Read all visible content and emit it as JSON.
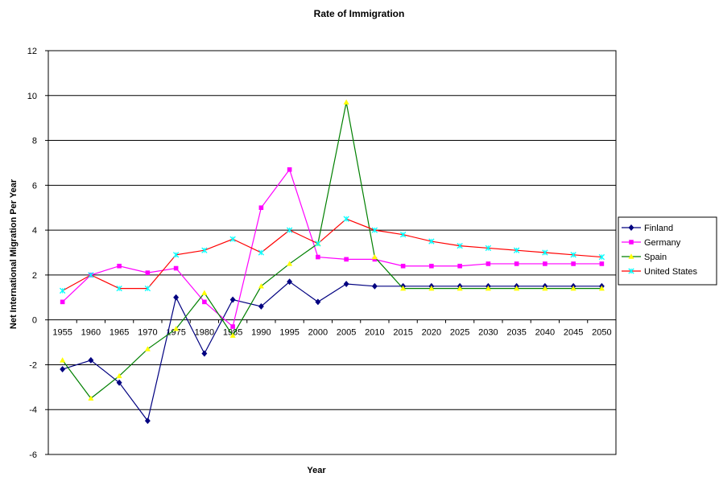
{
  "chart_data": {
    "type": "line",
    "title": "Rate of Immigration",
    "xlabel": "Year",
    "ylabel": "Net International Migration Per Year",
    "ylim": [
      -6,
      12
    ],
    "ytick_step": 2,
    "grid": "horizontal",
    "legend_position": "right",
    "categories": [
      "1955",
      "1960",
      "1965",
      "1970",
      "1975",
      "1980",
      "1985",
      "1990",
      "1995",
      "2000",
      "2005",
      "2010",
      "2015",
      "2020",
      "2025",
      "2030",
      "2035",
      "2040",
      "2045",
      "2050"
    ],
    "series": [
      {
        "name": "Finland",
        "color": "#000080",
        "marker": "diamond",
        "values": [
          -2.2,
          -1.8,
          -2.8,
          -4.5,
          1.0,
          -1.5,
          0.9,
          0.6,
          1.7,
          0.8,
          1.6,
          1.5,
          1.5,
          1.5,
          1.5,
          1.5,
          1.5,
          1.5,
          1.5,
          1.5
        ]
      },
      {
        "name": "Germany",
        "color": "#ff00ff",
        "marker": "square",
        "values": [
          0.8,
          2.0,
          2.4,
          2.1,
          2.3,
          0.8,
          -0.3,
          5.0,
          6.7,
          2.8,
          2.7,
          2.7,
          2.4,
          2.4,
          2.4,
          2.5,
          2.5,
          2.5,
          2.5,
          2.5
        ]
      },
      {
        "name": "Spain",
        "color": "#ffff00",
        "line_color": "#008000",
        "marker": "triangle",
        "values": [
          -1.8,
          -3.5,
          -2.5,
          -1.3,
          -0.4,
          1.2,
          -0.7,
          1.5,
          2.5,
          3.4,
          9.7,
          2.8,
          1.4,
          1.4,
          1.4,
          1.4,
          1.4,
          1.4,
          1.4,
          1.4
        ]
      },
      {
        "name": "United States",
        "color": "#00ffff",
        "line_color": "#ff0000",
        "marker": "x",
        "values": [
          1.3,
          2.0,
          1.4,
          1.4,
          2.9,
          3.1,
          3.6,
          3.0,
          4.0,
          3.4,
          4.5,
          4.0,
          3.8,
          3.5,
          3.3,
          3.2,
          3.1,
          3.0,
          2.9,
          2.8
        ]
      }
    ]
  }
}
